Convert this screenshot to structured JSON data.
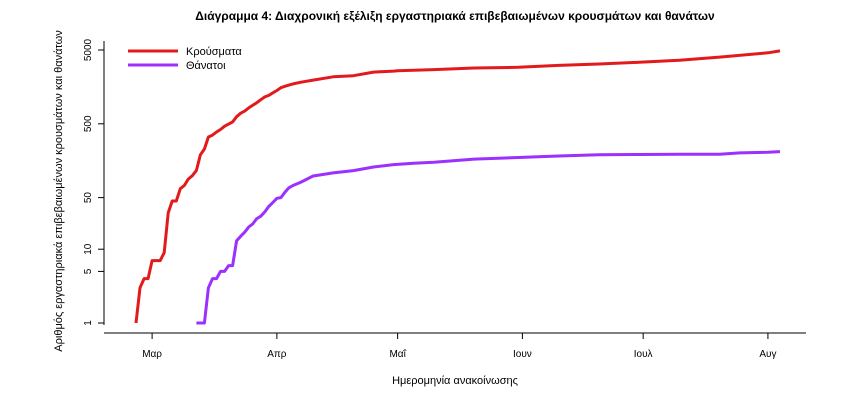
{
  "chart_data": {
    "type": "line",
    "title": "Διάγραμμα 4: Διαχρονική εξέλιξη εργαστηριακά επιβεβαιωμένων κρουσμάτων και θανάτων",
    "xlabel": "Ημερομηνία ανακοίνωσης",
    "ylabel": "Αριθμός εργαστηριακά επιβεβαιωμένων κρουσμάτων και θανάτων",
    "y_scale": "log",
    "ylim": [
      1,
      5000
    ],
    "xlim": [
      "2020-02-23",
      "2020-08-04"
    ],
    "x_ticks": [
      {
        "date": "2020-03-01",
        "label": "Μαρ"
      },
      {
        "date": "2020-04-01",
        "label": "Απρ"
      },
      {
        "date": "2020-05-01",
        "label": "Μαΐ"
      },
      {
        "date": "2020-06-01",
        "label": "Ιουν"
      },
      {
        "date": "2020-07-01",
        "label": "Ιουλ"
      },
      {
        "date": "2020-08-01",
        "label": "Αυγ"
      }
    ],
    "y_ticks": [
      1,
      5,
      10,
      50,
      500,
      5000
    ],
    "grid": false,
    "legend_position": "top-left",
    "series": [
      {
        "name": "Κρούσματα",
        "color": "#e31a1c",
        "points": [
          [
            "2020-02-26",
            1
          ],
          [
            "2020-02-27",
            3
          ],
          [
            "2020-02-28",
            4
          ],
          [
            "2020-02-29",
            4
          ],
          [
            "2020-03-01",
            7
          ],
          [
            "2020-03-02",
            7
          ],
          [
            "2020-03-03",
            7
          ],
          [
            "2020-03-04",
            9
          ],
          [
            "2020-03-05",
            31
          ],
          [
            "2020-03-06",
            45
          ],
          [
            "2020-03-07",
            45
          ],
          [
            "2020-03-08",
            66
          ],
          [
            "2020-03-09",
            73
          ],
          [
            "2020-03-10",
            89
          ],
          [
            "2020-03-11",
            99
          ],
          [
            "2020-03-12",
            117
          ],
          [
            "2020-03-13",
            190
          ],
          [
            "2020-03-14",
            228
          ],
          [
            "2020-03-15",
            331
          ],
          [
            "2020-03-16",
            352
          ],
          [
            "2020-03-17",
            387
          ],
          [
            "2020-03-18",
            418
          ],
          [
            "2020-03-19",
            464
          ],
          [
            "2020-03-20",
            495
          ],
          [
            "2020-03-21",
            530
          ],
          [
            "2020-03-22",
            624
          ],
          [
            "2020-03-23",
            695
          ],
          [
            "2020-03-24",
            743
          ],
          [
            "2020-03-25",
            821
          ],
          [
            "2020-03-26",
            892
          ],
          [
            "2020-03-27",
            966
          ],
          [
            "2020-03-28",
            1061
          ],
          [
            "2020-03-29",
            1156
          ],
          [
            "2020-03-30",
            1212
          ],
          [
            "2020-03-31",
            1314
          ],
          [
            "2020-04-01",
            1415
          ],
          [
            "2020-04-02",
            1544
          ],
          [
            "2020-04-03",
            1613
          ],
          [
            "2020-04-04",
            1673
          ],
          [
            "2020-04-05",
            1735
          ],
          [
            "2020-04-07",
            1832
          ],
          [
            "2020-04-10",
            1955
          ],
          [
            "2020-04-15",
            2170
          ],
          [
            "2020-04-20",
            2245
          ],
          [
            "2020-04-25",
            2506
          ],
          [
            "2020-04-30",
            2591
          ],
          [
            "2020-05-01",
            2612
          ],
          [
            "2020-05-10",
            2710
          ],
          [
            "2020-05-20",
            2850
          ],
          [
            "2020-05-31",
            2917
          ],
          [
            "2020-06-10",
            3088
          ],
          [
            "2020-06-20",
            3227
          ],
          [
            "2020-06-30",
            3409
          ],
          [
            "2020-07-10",
            3622
          ],
          [
            "2020-07-20",
            4007
          ],
          [
            "2020-08-01",
            4587
          ],
          [
            "2020-08-04",
            4855
          ]
        ]
      },
      {
        "name": "Θάνατοι",
        "color": "#9b30ff",
        "points": [
          [
            "2020-03-12",
            1
          ],
          [
            "2020-03-13",
            1
          ],
          [
            "2020-03-14",
            1
          ],
          [
            "2020-03-15",
            3
          ],
          [
            "2020-03-16",
            4
          ],
          [
            "2020-03-17",
            4
          ],
          [
            "2020-03-18",
            5
          ],
          [
            "2020-03-19",
            5
          ],
          [
            "2020-03-20",
            6
          ],
          [
            "2020-03-21",
            6
          ],
          [
            "2020-03-22",
            13
          ],
          [
            "2020-03-23",
            15
          ],
          [
            "2020-03-24",
            17
          ],
          [
            "2020-03-25",
            20
          ],
          [
            "2020-03-26",
            22
          ],
          [
            "2020-03-27",
            26
          ],
          [
            "2020-03-28",
            28
          ],
          [
            "2020-03-29",
            32
          ],
          [
            "2020-03-30",
            38
          ],
          [
            "2020-03-31",
            43
          ],
          [
            "2020-04-01",
            49
          ],
          [
            "2020-04-02",
            50
          ],
          [
            "2020-04-03",
            59
          ],
          [
            "2020-04-04",
            68
          ],
          [
            "2020-04-05",
            73
          ],
          [
            "2020-04-07",
            81
          ],
          [
            "2020-04-10",
            98
          ],
          [
            "2020-04-15",
            108
          ],
          [
            "2020-04-20",
            116
          ],
          [
            "2020-04-25",
            130
          ],
          [
            "2020-04-30",
            140
          ],
          [
            "2020-05-05",
            146
          ],
          [
            "2020-05-10",
            151
          ],
          [
            "2020-05-20",
            166
          ],
          [
            "2020-05-31",
            175
          ],
          [
            "2020-06-10",
            183
          ],
          [
            "2020-06-20",
            190
          ],
          [
            "2020-06-30",
            192
          ],
          [
            "2020-07-10",
            193
          ],
          [
            "2020-07-20",
            194
          ],
          [
            "2020-07-25",
            202
          ],
          [
            "2020-08-01",
            206
          ],
          [
            "2020-08-04",
            210
          ]
        ]
      }
    ]
  }
}
